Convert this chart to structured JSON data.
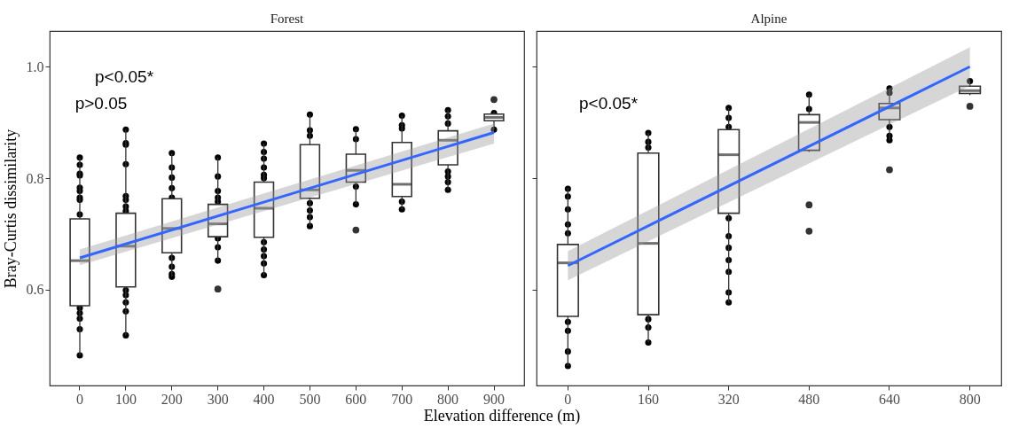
{
  "chart_data": [
    {
      "type": "box",
      "title": "Forest",
      "xlabel": "Elevation difference (m)",
      "ylabel": "Bray-Curtis dissimilarity",
      "categories": [
        "0",
        "100",
        "200",
        "300",
        "400",
        "500",
        "600",
        "700",
        "800",
        "900"
      ],
      "ylim": [
        0.428,
        1.064
      ],
      "yticks": [
        0.6,
        0.8,
        {
          "value": 1.0,
          "label": "1.0"
        }
      ],
      "boxes": [
        {
          "low": 0.482,
          "q1": 0.571,
          "median": 0.652,
          "q3": 0.727,
          "high": 0.837
        },
        {
          "low": 0.518,
          "q1": 0.605,
          "median": 0.678,
          "q3": 0.737,
          "high": 0.887
        },
        {
          "low": 0.623,
          "q1": 0.666,
          "median": 0.71,
          "q3": 0.763,
          "high": 0.845
        },
        {
          "low": 0.652,
          "q1": 0.695,
          "median": 0.718,
          "q3": 0.753,
          "high": 0.837,
          "outliers": [
            0.601
          ]
        },
        {
          "low": 0.626,
          "q1": 0.694,
          "median": 0.746,
          "q3": 0.793,
          "high": 0.862
        },
        {
          "low": 0.714,
          "q1": 0.764,
          "median": 0.779,
          "q3": 0.86,
          "high": 0.914
        },
        {
          "low": 0.753,
          "q1": 0.793,
          "median": 0.814,
          "q3": 0.843,
          "high": 0.888,
          "outliers": [
            0.707
          ]
        },
        {
          "low": 0.744,
          "q1": 0.767,
          "median": 0.789,
          "q3": 0.864,
          "high": 0.912
        },
        {
          "low": 0.779,
          "q1": 0.824,
          "median": 0.868,
          "q3": 0.885,
          "high": 0.922
        },
        {
          "low": 0.887,
          "q1": 0.903,
          "median": 0.909,
          "q3": 0.915,
          "high": 0.919,
          "outliers": [
            0.941
          ]
        }
      ],
      "series": [
        {
          "type": "scatter",
          "color": "#000000",
          "marker": "circle",
          "x": [
            "0",
            "0",
            "0",
            "0",
            "0",
            "0",
            "0",
            "0",
            "0",
            "0",
            "0",
            "0",
            "0",
            "0",
            "100",
            "100",
            "100",
            "100",
            "100",
            "100",
            "100",
            "100",
            "100",
            "100",
            "100",
            "100",
            "100",
            "200",
            "200",
            "200",
            "200",
            "200",
            "200",
            "200",
            "200",
            "200",
            "300",
            "300",
            "300",
            "300",
            "300",
            "300",
            "300",
            "300",
            "400",
            "400",
            "400",
            "400",
            "400",
            "400",
            "400",
            "400",
            "400",
            "400",
            "400",
            "500",
            "500",
            "500",
            "500",
            "500",
            "500",
            "500",
            "600",
            "600",
            "600",
            "600",
            "700",
            "700",
            "700",
            "700",
            "700",
            "800",
            "800",
            "800",
            "800",
            "800",
            "800",
            "800",
            "900",
            "900"
          ],
          "values": [
            0.837,
            0.824,
            0.808,
            0.805,
            0.783,
            0.777,
            0.765,
            0.761,
            0.735,
            0.567,
            0.558,
            0.548,
            0.529,
            0.482,
            0.887,
            0.863,
            0.86,
            0.825,
            0.768,
            0.761,
            0.749,
            0.741,
            0.599,
            0.59,
            0.577,
            0.561,
            0.518,
            0.845,
            0.819,
            0.801,
            0.782,
            0.765,
            0.657,
            0.641,
            0.628,
            0.623,
            0.837,
            0.803,
            0.777,
            0.765,
            0.758,
            0.692,
            0.676,
            0.652,
            0.862,
            0.847,
            0.835,
            0.819,
            0.806,
            0.8,
            0.685,
            0.672,
            0.66,
            0.647,
            0.626,
            0.914,
            0.886,
            0.876,
            0.755,
            0.742,
            0.73,
            0.714,
            0.888,
            0.87,
            0.785,
            0.753,
            0.912,
            0.895,
            0.889,
            0.758,
            0.744,
            0.922,
            0.911,
            0.898,
            0.812,
            0.803,
            0.793,
            0.779,
            0.917,
            0.887
          ]
        },
        {
          "type": "line",
          "color": "#3366ff",
          "x": [
            "0",
            "900"
          ],
          "values": [
            0.657,
            0.882
          ],
          "lower": [
            0.644,
            0.862
          ],
          "upper": [
            0.672,
            0.898
          ]
        }
      ],
      "annotations": [
        "p>0.05",
        "p<0.05*"
      ]
    },
    {
      "type": "box",
      "title": "Alpine",
      "categories": [
        "0",
        "160",
        "320",
        "480",
        "640",
        "800"
      ],
      "ylim": [
        0.428,
        1.064
      ],
      "yticks": [
        0.6,
        0.8,
        1
      ],
      "tick_labels": "x",
      "boxes": [
        {
          "low": 0.463,
          "q1": 0.552,
          "median": 0.648,
          "q3": 0.681,
          "high": 0.782
        },
        {
          "low": 0.505,
          "q1": 0.555,
          "median": 0.683,
          "q3": 0.845,
          "high": 0.881
        },
        {
          "low": 0.577,
          "q1": 0.737,
          "median": 0.842,
          "q3": 0.887,
          "high": 0.926
        },
        {
          "low": 0.847,
          "q1": 0.85,
          "median": 0.9,
          "q3": 0.914,
          "high": 0.95,
          "outliers": [
            0.752,
            0.705
          ]
        },
        {
          "low": 0.868,
          "q1": 0.905,
          "median": 0.926,
          "q3": 0.934,
          "high": 0.961,
          "outliers": [
            0.815
          ]
        },
        {
          "low": 0.949,
          "q1": 0.952,
          "median": 0.957,
          "q3": 0.965,
          "high": 0.974,
          "outliers": [
            0.929
          ]
        }
      ],
      "series": [
        {
          "type": "scatter",
          "color": "#000000",
          "marker": "circle",
          "x": [
            "0",
            "0",
            "0",
            "0",
            "0",
            "0",
            "0",
            "0",
            "0",
            "160",
            "160",
            "160",
            "160",
            "160",
            "160",
            "320",
            "320",
            "320",
            "320",
            "320",
            "320",
            "320",
            "320",
            "320",
            "320",
            "480",
            "480",
            "640",
            "640",
            "640",
            "640",
            "640",
            "800",
            "800"
          ],
          "values": [
            0.781,
            0.767,
            0.744,
            0.717,
            0.701,
            0.542,
            0.526,
            0.489,
            0.463,
            0.881,
            0.865,
            0.855,
            0.547,
            0.532,
            0.505,
            0.926,
            0.908,
            0.892,
            0.728,
            0.696,
            0.675,
            0.653,
            0.632,
            0.595,
            0.577,
            0.95,
            0.924,
            0.961,
            0.953,
            0.892,
            0.876,
            0.868,
            0.974,
            null
          ]
        },
        {
          "type": "line",
          "color": "#3366ff",
          "x": [
            "0",
            "800"
          ],
          "values": [
            0.643,
            1.0
          ],
          "lower": [
            0.617,
            0.966
          ],
          "upper": [
            0.669,
            1.035
          ]
        }
      ],
      "annotations": [
        "p<0.05*"
      ]
    }
  ]
}
